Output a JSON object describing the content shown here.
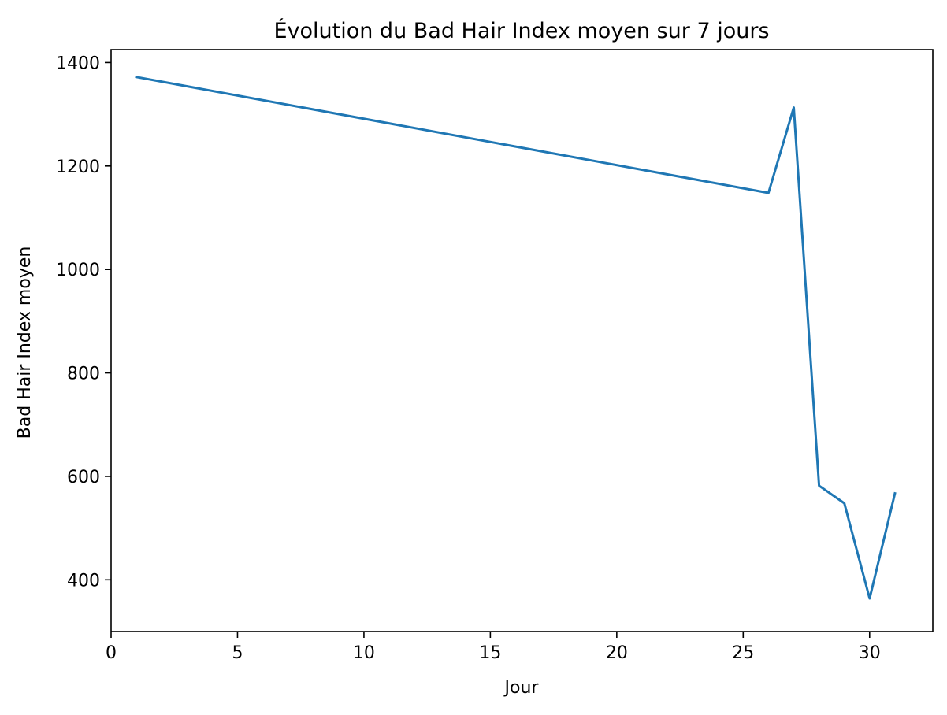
{
  "chart_data": {
    "type": "line",
    "title": "Évolution du Bad Hair Index moyen sur 7 jours",
    "xlabel": "Jour",
    "ylabel": "Bad Hair Index moyen",
    "xlim": [
      0,
      32.5
    ],
    "ylim": [
      300,
      1425
    ],
    "xticks": [
      0,
      5,
      10,
      15,
      20,
      25,
      30
    ],
    "yticks": [
      400,
      600,
      800,
      1000,
      1200,
      1400
    ],
    "grid": false,
    "legend": "none",
    "series": [
      {
        "color": "#1f77b4",
        "x": [
          1,
          26,
          27,
          28,
          29,
          30,
          31
        ],
        "y": [
          1372,
          1148,
          1313,
          582,
          548,
          364,
          567
        ]
      }
    ]
  }
}
